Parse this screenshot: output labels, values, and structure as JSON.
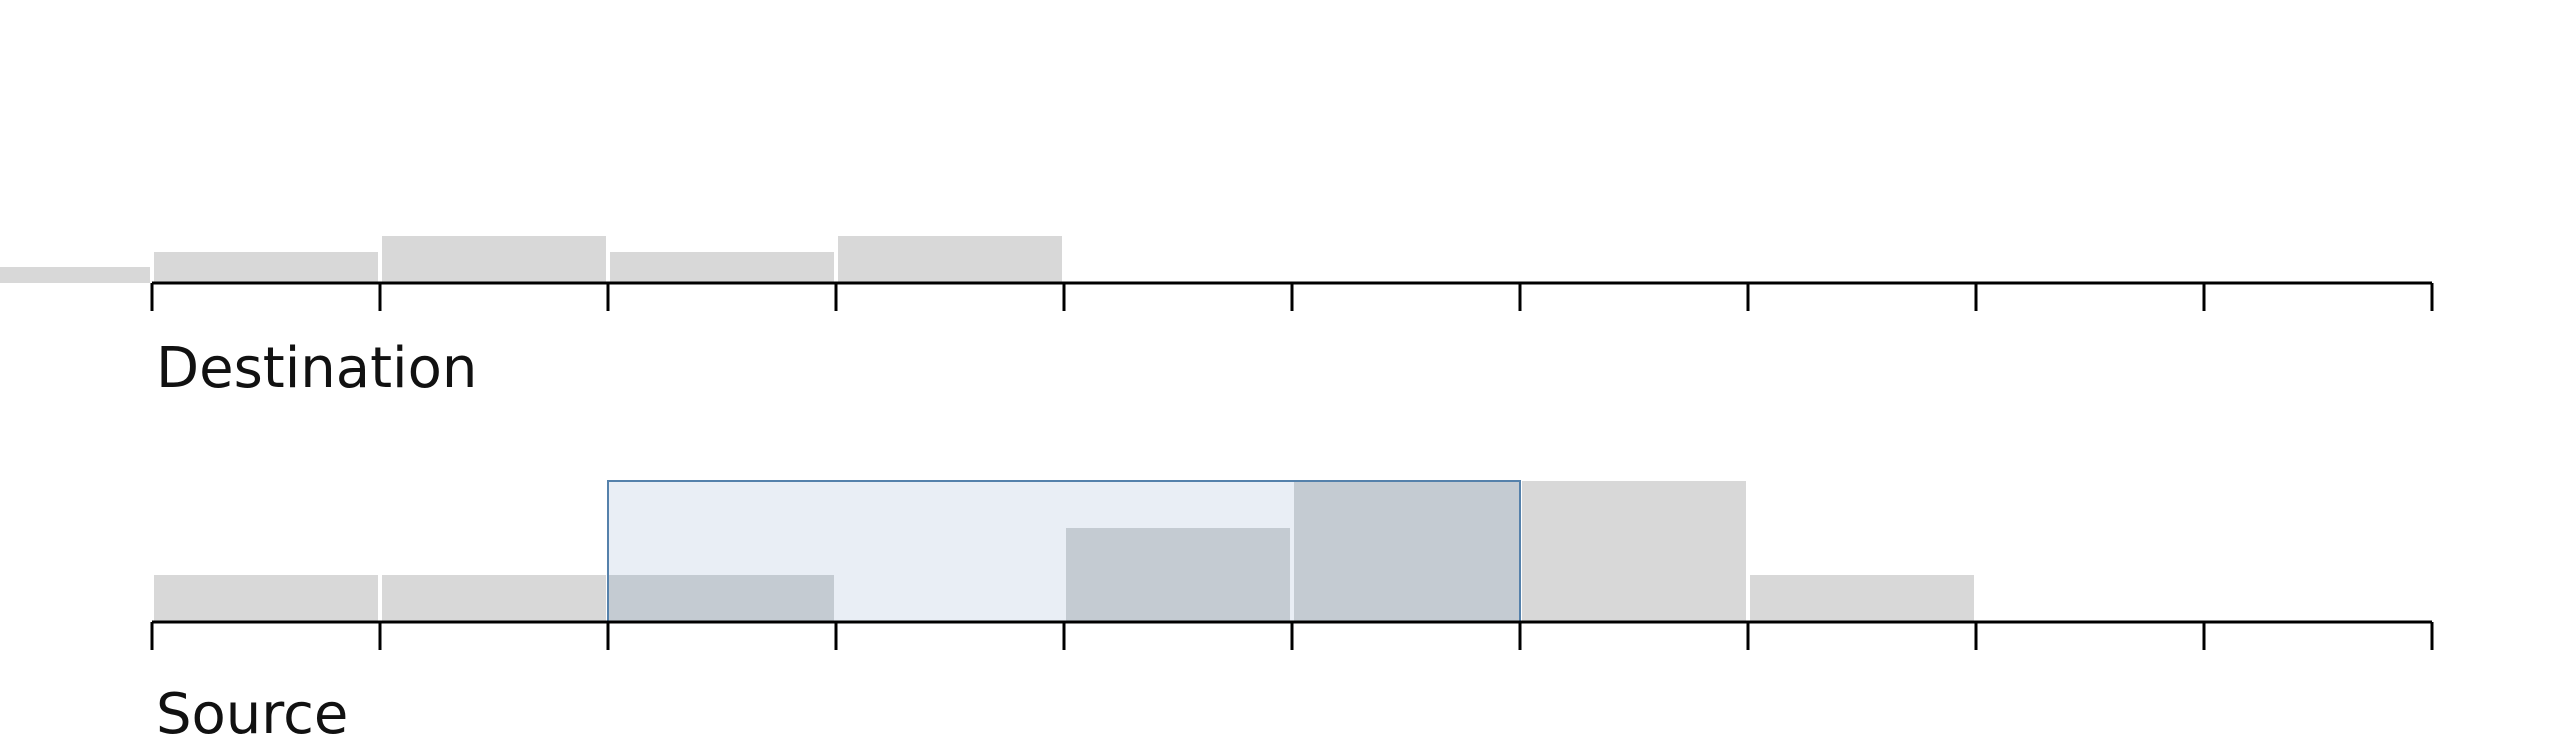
{
  "colors": {
    "bar": "#d8d8d8",
    "axis": "#000000",
    "selection_fill": "#e9eef5",
    "selection_stroke": "#5581ab",
    "overlap_fill": "#c4cbd2"
  },
  "tracks": [
    {
      "id": "destination",
      "label": "Destination",
      "bins": [
        {
          "bin": -1,
          "value": 1
        },
        {
          "bin": 0,
          "value": 2
        },
        {
          "bin": 1,
          "value": 3
        },
        {
          "bin": 2,
          "value": 2
        },
        {
          "bin": 3,
          "value": 3
        }
      ]
    },
    {
      "id": "source",
      "label": "Source",
      "bins": [
        {
          "bin": 0,
          "value": 1
        },
        {
          "bin": 1,
          "value": 1
        },
        {
          "bin": 2,
          "value": 1
        },
        {
          "bin": 3,
          "value": 0
        },
        {
          "bin": 4,
          "value": 2
        },
        {
          "bin": 5,
          "value": 3
        },
        {
          "bin": 6,
          "value": 3
        },
        {
          "bin": 7,
          "value": 1
        }
      ],
      "selection": {
        "start_bin": 2,
        "end_bin": 5,
        "level": 3
      }
    }
  ],
  "axis": {
    "bins": 10
  }
}
